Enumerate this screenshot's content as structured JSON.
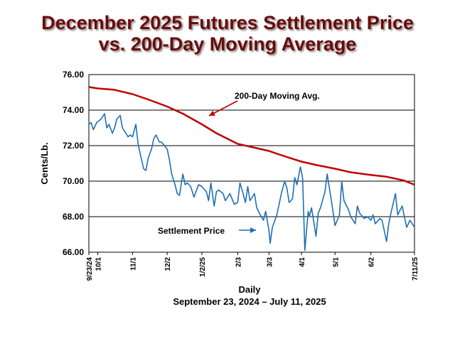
{
  "title_line1": "December 2025 Futures Settlement Price",
  "title_line2": "vs. 200-Day Moving Average",
  "colors": {
    "title": "#6b0b0b",
    "ma_line": "#c00000",
    "settle_line": "#1f6fb4",
    "grid": "#000000"
  },
  "chart_data": {
    "type": "line",
    "ylabel": "Cents/Lb.",
    "xlabel": "Daily",
    "xlabel2": "September 23, 2024 – July 11, 2025",
    "ylim": [
      66,
      76
    ],
    "yticks": [
      "66.00",
      "68.00",
      "70.00",
      "72.00",
      "74.00",
      "76.00"
    ],
    "grid": true,
    "x_start": "2024-09-23",
    "x_end": "2025-07-11",
    "xticks": [
      {
        "label": "9/23/24",
        "date": "2024-09-23"
      },
      {
        "label": "10/1",
        "date": "2024-10-01"
      },
      {
        "label": "11/1",
        "date": "2024-11-01"
      },
      {
        "label": "12/2",
        "date": "2024-12-02"
      },
      {
        "label": "1/2/25",
        "date": "2025-01-02"
      },
      {
        "label": "2/3",
        "date": "2025-02-03"
      },
      {
        "label": "3/3",
        "date": "2025-03-03"
      },
      {
        "label": "4/1",
        "date": "2025-04-01"
      },
      {
        "label": "5/1",
        "date": "2025-05-01"
      },
      {
        "label": "6/2",
        "date": "2025-06-02"
      },
      {
        "label": "7/11/25",
        "date": "2025-07-11"
      }
    ],
    "annotations": [
      {
        "text": "200-Day Moving Avg.",
        "series": "ma"
      },
      {
        "text": "Settlement Price",
        "series": "settle"
      }
    ],
    "series": [
      {
        "key": "ma",
        "values": [
          [
            "2024-09-23",
            75.3
          ],
          [
            "2024-10-01",
            75.22
          ],
          [
            "2024-10-15",
            75.15
          ],
          [
            "2024-11-01",
            74.9
          ],
          [
            "2024-11-15",
            74.6
          ],
          [
            "2024-12-02",
            74.2
          ],
          [
            "2024-12-16",
            73.8
          ],
          [
            "2025-01-02",
            73.2
          ],
          [
            "2025-01-15",
            72.7
          ],
          [
            "2025-02-03",
            72.1
          ],
          [
            "2025-02-17",
            71.9
          ],
          [
            "2025-03-03",
            71.7
          ],
          [
            "2025-03-17",
            71.4
          ],
          [
            "2025-04-01",
            71.1
          ],
          [
            "2025-04-15",
            70.9
          ],
          [
            "2025-05-01",
            70.7
          ],
          [
            "2025-05-15",
            70.5
          ],
          [
            "2025-06-02",
            70.35
          ],
          [
            "2025-06-16",
            70.25
          ],
          [
            "2025-07-01",
            70.05
          ],
          [
            "2025-07-11",
            69.8
          ]
        ]
      },
      {
        "key": "settle",
        "values": [
          [
            "2024-09-23",
            73.2
          ],
          [
            "2024-09-25",
            73.3
          ],
          [
            "2024-09-27",
            72.9
          ],
          [
            "2024-09-30",
            73.3
          ],
          [
            "2024-10-02",
            73.4
          ],
          [
            "2024-10-04",
            73.5
          ],
          [
            "2024-10-07",
            73.8
          ],
          [
            "2024-10-09",
            73.0
          ],
          [
            "2024-10-11",
            73.2
          ],
          [
            "2024-10-14",
            72.7
          ],
          [
            "2024-10-16",
            73.0
          ],
          [
            "2024-10-18",
            73.5
          ],
          [
            "2024-10-21",
            73.7
          ],
          [
            "2024-10-23",
            73.0
          ],
          [
            "2024-10-25",
            72.8
          ],
          [
            "2024-10-28",
            72.5
          ],
          [
            "2024-10-30",
            72.6
          ],
          [
            "2024-11-01",
            72.5
          ],
          [
            "2024-11-04",
            73.2
          ],
          [
            "2024-11-06",
            72.1
          ],
          [
            "2024-11-08",
            71.5
          ],
          [
            "2024-11-11",
            70.7
          ],
          [
            "2024-11-13",
            70.6
          ],
          [
            "2024-11-15",
            71.3
          ],
          [
            "2024-11-18",
            71.8
          ],
          [
            "2024-11-20",
            72.4
          ],
          [
            "2024-11-22",
            72.6
          ],
          [
            "2024-11-25",
            72.2
          ],
          [
            "2024-11-27",
            72.2
          ],
          [
            "2024-12-02",
            71.8
          ],
          [
            "2024-12-04",
            71.2
          ],
          [
            "2024-12-06",
            70.4
          ],
          [
            "2024-12-09",
            69.8
          ],
          [
            "2024-12-11",
            69.3
          ],
          [
            "2024-12-13",
            69.2
          ],
          [
            "2024-12-16",
            70.4
          ],
          [
            "2024-12-18",
            69.8
          ],
          [
            "2024-12-20",
            69.9
          ],
          [
            "2024-12-23",
            69.7
          ],
          [
            "2024-12-26",
            69.1
          ],
          [
            "2024-12-30",
            69.8
          ],
          [
            "2025-01-02",
            69.7
          ],
          [
            "2025-01-06",
            69.4
          ],
          [
            "2025-01-08",
            68.9
          ],
          [
            "2025-01-10",
            69.9
          ],
          [
            "2025-01-13",
            68.6
          ],
          [
            "2025-01-15",
            69.4
          ],
          [
            "2025-01-17",
            69.5
          ],
          [
            "2025-01-21",
            69.3
          ],
          [
            "2025-01-23",
            68.9
          ],
          [
            "2025-01-27",
            69.3
          ],
          [
            "2025-01-29",
            69.0
          ],
          [
            "2025-01-31",
            68.7
          ],
          [
            "2025-02-03",
            68.8
          ],
          [
            "2025-02-05",
            69.9
          ],
          [
            "2025-02-07",
            69.5
          ],
          [
            "2025-02-10",
            68.8
          ],
          [
            "2025-02-12",
            69.7
          ],
          [
            "2025-02-14",
            68.9
          ],
          [
            "2025-02-18",
            69.3
          ],
          [
            "2025-02-20",
            68.5
          ],
          [
            "2025-02-24",
            68.0
          ],
          [
            "2025-02-26",
            67.8
          ],
          [
            "2025-02-28",
            68.3
          ],
          [
            "2025-03-03",
            67.2
          ],
          [
            "2025-03-04",
            66.5
          ],
          [
            "2025-03-06",
            67.4
          ],
          [
            "2025-03-10",
            68.1
          ],
          [
            "2025-03-12",
            68.7
          ],
          [
            "2025-03-14",
            69.3
          ],
          [
            "2025-03-17",
            70.0
          ],
          [
            "2025-03-19",
            69.6
          ],
          [
            "2025-03-21",
            68.8
          ],
          [
            "2025-03-24",
            69.0
          ],
          [
            "2025-03-26",
            70.2
          ],
          [
            "2025-03-28",
            69.8
          ],
          [
            "2025-03-31",
            70.8
          ],
          [
            "2025-04-02",
            70.2
          ],
          [
            "2025-04-04",
            66.1
          ],
          [
            "2025-04-07",
            68.3
          ],
          [
            "2025-04-08",
            68.0
          ],
          [
            "2025-04-10",
            68.5
          ],
          [
            "2025-04-14",
            66.9
          ],
          [
            "2025-04-16",
            68.2
          ],
          [
            "2025-04-18",
            68.5
          ],
          [
            "2025-04-22",
            69.4
          ],
          [
            "2025-04-24",
            70.4
          ],
          [
            "2025-04-28",
            68.8
          ],
          [
            "2025-05-01",
            67.5
          ],
          [
            "2025-05-05",
            68.1
          ],
          [
            "2025-05-07",
            70.0
          ],
          [
            "2025-05-09",
            68.9
          ],
          [
            "2025-05-13",
            68.4
          ],
          [
            "2025-05-15",
            68.0
          ],
          [
            "2025-05-19",
            67.6
          ],
          [
            "2025-05-21",
            68.6
          ],
          [
            "2025-05-23",
            68.2
          ],
          [
            "2025-05-27",
            67.9
          ],
          [
            "2025-05-30",
            68.0
          ],
          [
            "2025-06-02",
            67.8
          ],
          [
            "2025-06-04",
            68.1
          ],
          [
            "2025-06-06",
            67.6
          ],
          [
            "2025-06-10",
            67.9
          ],
          [
            "2025-06-12",
            67.8
          ],
          [
            "2025-06-16",
            66.6
          ],
          [
            "2025-06-18",
            67.6
          ],
          [
            "2025-06-20",
            68.2
          ],
          [
            "2025-06-24",
            69.3
          ],
          [
            "2025-06-26",
            68.1
          ],
          [
            "2025-06-30",
            68.6
          ],
          [
            "2025-07-02",
            68.0
          ],
          [
            "2025-07-04",
            67.4
          ],
          [
            "2025-07-07",
            67.8
          ],
          [
            "2025-07-09",
            67.6
          ],
          [
            "2025-07-11",
            67.4
          ]
        ]
      }
    ]
  }
}
